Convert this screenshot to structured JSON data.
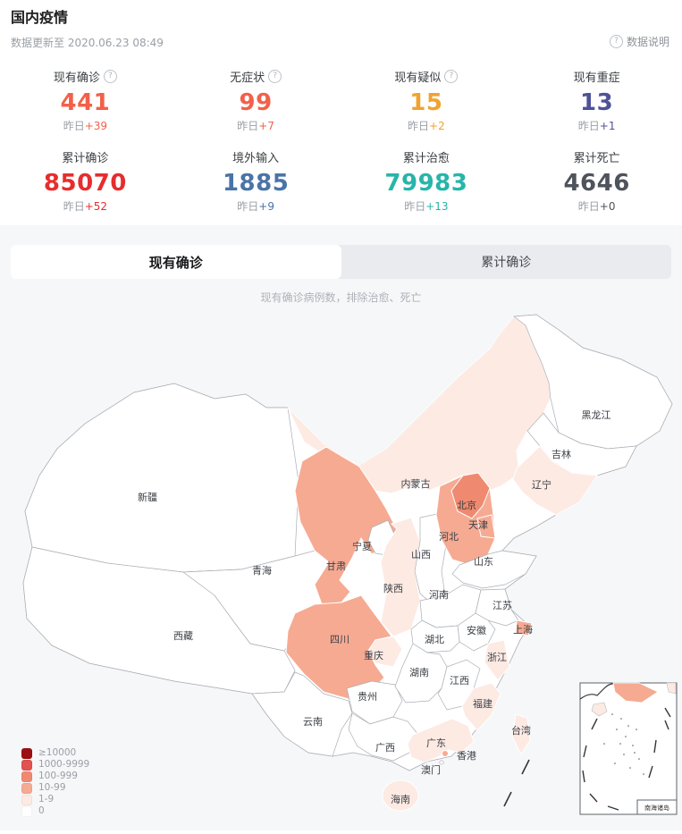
{
  "header": {
    "title": "国内疫情",
    "updated": "数据更新至 2020.06.23 08:49",
    "data_note": "数据说明"
  },
  "stats": [
    {
      "id": "current-confirmed",
      "label": "现有确诊",
      "help": true,
      "value": "441",
      "delta_prefix": "昨日",
      "delta_value": "+39",
      "color": "#f3604a"
    },
    {
      "id": "asymptomatic",
      "label": "无症状",
      "help": true,
      "value": "99",
      "delta_prefix": "昨日",
      "delta_value": "+7",
      "color": "#f3604a"
    },
    {
      "id": "current-suspected",
      "label": "现有疑似",
      "help": true,
      "value": "15",
      "delta_prefix": "昨日",
      "delta_value": "+2",
      "color": "#f0a32f"
    },
    {
      "id": "current-severe",
      "label": "现有重症",
      "help": false,
      "value": "13",
      "delta_prefix": "昨日",
      "delta_value": "+1",
      "color": "#4e5397"
    },
    {
      "id": "total-confirmed",
      "label": "累计确诊",
      "help": false,
      "value": "85070",
      "delta_prefix": "昨日",
      "delta_value": "+52",
      "color": "#e62d2e"
    },
    {
      "id": "imported",
      "label": "境外输入",
      "help": false,
      "value": "1885",
      "delta_prefix": "昨日",
      "delta_value": "+9",
      "color": "#4a74a8"
    },
    {
      "id": "total-cured",
      "label": "累计治愈",
      "help": false,
      "value": "79983",
      "delta_prefix": "昨日",
      "delta_value": "+13",
      "color": "#27b5a9"
    },
    {
      "id": "total-deaths",
      "label": "累计死亡",
      "help": false,
      "value": "4646",
      "delta_prefix": "昨日",
      "delta_value": "+0",
      "color": "#4f535c"
    }
  ],
  "tabs": [
    {
      "label": "现有确诊",
      "active": true
    },
    {
      "label": "累计确诊",
      "active": false
    }
  ],
  "map_caption": "现有确诊病例数，排除治愈、死亡",
  "legend": {
    "items": [
      {
        "label": "≥10000",
        "color": "#9d0f12"
      },
      {
        "label": "1000-9999",
        "color": "#e25250"
      },
      {
        "label": "100-999",
        "color": "#ef8a70"
      },
      {
        "label": "10-99",
        "color": "#f6aa92"
      },
      {
        "label": "1-9",
        "color": "#fdeae3"
      },
      {
        "label": "0",
        "color": "#ffffff"
      }
    ]
  },
  "map": {
    "level_colors": {
      "0": "#ffffff",
      "1-9": "#fdeae3",
      "10-99": "#f6aa92",
      "100-999": "#ef8a70",
      "1000-9999": "#e25250",
      "10000+": "#9d0f12"
    },
    "provinces": [
      {
        "id": "xinjiang",
        "name": "新疆",
        "level": "0"
      },
      {
        "id": "xizang",
        "name": "西藏",
        "level": "0"
      },
      {
        "id": "qinghai",
        "name": "青海",
        "level": "0"
      },
      {
        "id": "neimenggu",
        "name": "内蒙古",
        "level": "1-9"
      },
      {
        "id": "heilongjiang",
        "name": "黑龙江",
        "level": "0"
      },
      {
        "id": "jilin",
        "name": "吉林",
        "level": "0"
      },
      {
        "id": "liaoning",
        "name": "辽宁",
        "level": "1-9"
      },
      {
        "id": "gansu",
        "name": "甘肃",
        "level": "10-99"
      },
      {
        "id": "ningxia",
        "name": "宁夏",
        "level": "0"
      },
      {
        "id": "shaanxi",
        "name": "陕西",
        "level": "1-9"
      },
      {
        "id": "shanxi",
        "name": "山西",
        "level": "0"
      },
      {
        "id": "hebei",
        "name": "河北",
        "level": "10-99"
      },
      {
        "id": "beijing",
        "name": "北京",
        "level": "100-999"
      },
      {
        "id": "tianjin",
        "name": "天津",
        "level": "10-99"
      },
      {
        "id": "shandong",
        "name": "山东",
        "level": "0"
      },
      {
        "id": "henan",
        "name": "河南",
        "level": "0"
      },
      {
        "id": "jiangsu",
        "name": "江苏",
        "level": "0"
      },
      {
        "id": "anhui",
        "name": "安徽",
        "level": "0"
      },
      {
        "id": "shanghai",
        "name": "上海",
        "level": "10-99"
      },
      {
        "id": "hubei",
        "name": "湖北",
        "level": "0"
      },
      {
        "id": "sichuan",
        "name": "四川",
        "level": "10-99"
      },
      {
        "id": "chongqing",
        "name": "重庆",
        "level": "1-9"
      },
      {
        "id": "guizhou",
        "name": "贵州",
        "level": "0"
      },
      {
        "id": "yunnan",
        "name": "云南",
        "level": "0"
      },
      {
        "id": "hunan",
        "name": "湖南",
        "level": "0"
      },
      {
        "id": "jiangxi",
        "name": "江西",
        "level": "0"
      },
      {
        "id": "zhejiang",
        "name": "浙江",
        "level": "1-9"
      },
      {
        "id": "fujian",
        "name": "福建",
        "level": "1-9"
      },
      {
        "id": "guangxi",
        "name": "广西",
        "level": "0"
      },
      {
        "id": "guangdong",
        "name": "广东",
        "level": "1-9"
      },
      {
        "id": "hongkong",
        "name": "香港",
        "level": "10-99"
      },
      {
        "id": "macau",
        "name": "澳门",
        "level": "0"
      },
      {
        "id": "hainan",
        "name": "海南",
        "level": "1-9"
      },
      {
        "id": "taiwan",
        "name": "台湾",
        "level": "1-9"
      }
    ]
  },
  "inset": {
    "label": "南海诸岛"
  }
}
